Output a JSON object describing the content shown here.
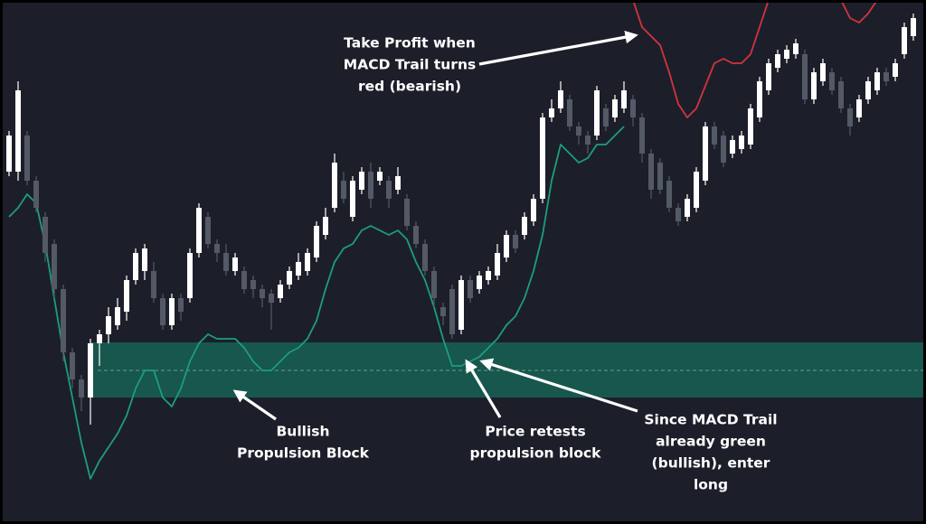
{
  "chart_data": {
    "type": "candlestick",
    "ylim": [
      0,
      580
    ],
    "up_color": "#ffffff",
    "down_color": "#545966",
    "background": "#1c1f2a",
    "open": [
      390,
      390,
      430,
      380,
      340,
      310,
      260,
      190,
      160,
      140,
      200,
      210,
      220,
      235,
      270,
      280,
      280,
      250,
      220,
      250,
      250,
      300,
      340,
      310,
      300,
      280,
      280,
      270,
      260,
      255,
      250,
      265,
      275,
      280,
      295,
      320,
      350,
      380,
      340,
      370,
      390,
      380,
      380,
      370,
      360,
      330,
      310,
      280,
      240,
      260,
      215,
      270,
      260,
      270,
      275,
      295,
      320,
      320,
      335,
      360,
      450,
      460,
      470,
      440,
      430,
      430,
      460,
      450,
      460,
      470,
      450,
      410,
      400,
      380,
      350,
      340,
      350,
      380,
      440,
      430,
      410,
      415,
      420,
      450,
      480,
      505,
      515,
      520,
      520,
      470,
      490,
      500,
      490,
      460,
      450,
      470,
      480,
      500,
      495,
      520,
      540
    ],
    "high": [
      435,
      490,
      435,
      385,
      345,
      315,
      265,
      195,
      165,
      205,
      215,
      240,
      250,
      275,
      305,
      310,
      290,
      255,
      255,
      255,
      305,
      355,
      345,
      315,
      310,
      300,
      285,
      275,
      265,
      260,
      270,
      285,
      300,
      305,
      335,
      350,
      410,
      390,
      385,
      395,
      400,
      395,
      385,
      395,
      365,
      335,
      315,
      285,
      245,
      265,
      275,
      275,
      280,
      285,
      310,
      325,
      325,
      345,
      365,
      455,
      470,
      490,
      475,
      445,
      435,
      485,
      465,
      475,
      490,
      475,
      455,
      415,
      405,
      385,
      355,
      365,
      395,
      445,
      445,
      435,
      430,
      435,
      465,
      495,
      515,
      525,
      530,
      537,
      525,
      505,
      515,
      505,
      495,
      465,
      475,
      495,
      505,
      505,
      515,
      555,
      565
    ],
    "low": [
      385,
      380,
      375,
      345,
      290,
      250,
      180,
      150,
      125,
      110,
      175,
      200,
      215,
      225,
      265,
      270,
      245,
      215,
      215,
      225,
      245,
      295,
      305,
      290,
      275,
      275,
      255,
      250,
      240,
      215,
      245,
      260,
      270,
      275,
      290,
      315,
      345,
      355,
      335,
      365,
      350,
      375,
      350,
      365,
      325,
      305,
      275,
      240,
      220,
      205,
      210,
      245,
      255,
      265,
      270,
      290,
      300,
      315,
      330,
      355,
      445,
      455,
      435,
      420,
      410,
      425,
      435,
      445,
      455,
      440,
      400,
      360,
      365,
      345,
      330,
      335,
      345,
      375,
      415,
      395,
      405,
      410,
      415,
      445,
      475,
      500,
      510,
      515,
      465,
      465,
      485,
      475,
      455,
      430,
      445,
      465,
      475,
      485,
      490,
      515,
      535
    ],
    "close": [
      430,
      480,
      380,
      350,
      300,
      260,
      190,
      160,
      140,
      200,
      210,
      230,
      240,
      270,
      300,
      305,
      250,
      220,
      250,
      235,
      300,
      350,
      310,
      300,
      280,
      295,
      260,
      260,
      250,
      245,
      265,
      280,
      290,
      300,
      330,
      340,
      400,
      360,
      380,
      390,
      360,
      390,
      360,
      385,
      330,
      310,
      280,
      250,
      230,
      210,
      270,
      250,
      275,
      280,
      300,
      320,
      305,
      340,
      360,
      450,
      460,
      480,
      440,
      430,
      420,
      480,
      440,
      470,
      480,
      450,
      410,
      370,
      370,
      350,
      335,
      360,
      390,
      440,
      420,
      400,
      425,
      430,
      460,
      490,
      510,
      520,
      525,
      532,
      470,
      500,
      510,
      480,
      460,
      440,
      470,
      490,
      500,
      490,
      510,
      550,
      560
    ],
    "series": [
      {
        "color": "#1c9e7a",
        "values": [
          340,
          350,
          365,
          355,
          310,
          250,
          190,
          140,
          90,
          50,
          70,
          85,
          100,
          120,
          150,
          170,
          170,
          140,
          130,
          150,
          180,
          200,
          210,
          205,
          205,
          205,
          195,
          180,
          170,
          170,
          180,
          190,
          195,
          205,
          225,
          260,
          290,
          305,
          310,
          325,
          330,
          325,
          320,
          325,
          315,
          290,
          270,
          240,
          205,
          175,
          175,
          180,
          185,
          195,
          205,
          220,
          230,
          250,
          280,
          320,
          380,
          420,
          410,
          400,
          405,
          420,
          420,
          430,
          440,
          null,
          null,
          null,
          null,
          null,
          null,
          null,
          null,
          null,
          null,
          null,
          null,
          null,
          null,
          null,
          null,
          null,
          null,
          null,
          null,
          null,
          null,
          null,
          null,
          null,
          null,
          null,
          null,
          null,
          null,
          null,
          null
        ]
      },
      {
        "color": "#d2343f",
        "values": [
          null,
          null,
          null,
          null,
          null,
          null,
          null,
          null,
          null,
          null,
          null,
          null,
          null,
          null,
          null,
          null,
          null,
          null,
          null,
          null,
          null,
          null,
          null,
          null,
          null,
          null,
          null,
          null,
          null,
          null,
          null,
          null,
          null,
          null,
          null,
          null,
          null,
          null,
          null,
          null,
          null,
          null,
          null,
          null,
          null,
          null,
          null,
          null,
          null,
          null,
          null,
          null,
          null,
          null,
          null,
          null,
          null,
          null,
          null,
          null,
          null,
          null,
          null,
          null,
          null,
          null,
          null,
          null,
          null,
          580,
          550,
          540,
          530,
          500,
          465,
          450,
          460,
          485,
          510,
          515,
          510,
          510,
          520,
          550,
          580,
          null,
          null,
          null,
          null,
          null,
          null,
          null,
          580,
          560,
          555,
          565,
          580,
          null,
          null,
          null,
          null
        ]
      }
    ],
    "block": {
      "start": 9,
      "low": 140,
      "high": 201,
      "mid": 170,
      "color": "#17574d"
    },
    "annotations": [
      {
        "lines": [
          "Take Profit when",
          "MACD Trail turns",
          "red (bearish)"
        ]
      },
      {
        "lines": [
          "Bullish",
          "Propulsion Block"
        ]
      },
      {
        "lines": [
          "Price retests",
          "propulsion block"
        ]
      },
      {
        "lines": [
          "Since MACD Trail",
          "already green",
          "(bullish), enter",
          "long"
        ]
      }
    ]
  }
}
